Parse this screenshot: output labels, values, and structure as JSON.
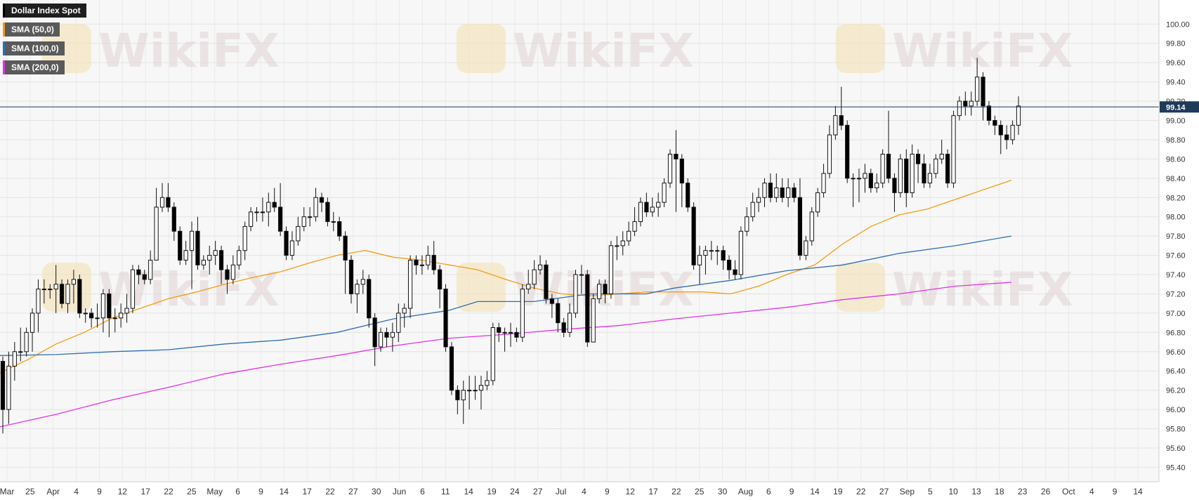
{
  "legend": [
    {
      "label": "Dollar Index Spot",
      "color": "#000000",
      "bg": "#1e1e1e"
    },
    {
      "label": "SMA (50,0)",
      "color": "#f39c12",
      "bg": "#5a5a5a"
    },
    {
      "label": "SMA (100,0)",
      "color": "#2f6db5",
      "bg": "#5a5a5a"
    },
    {
      "label": "SMA (200,0)",
      "color": "#e231e8",
      "bg": "#5a5a5a"
    }
  ],
  "price_label": "99.14",
  "watermark": "WikiFX",
  "chart_data": {
    "type": "candlestick",
    "title": "Dollar Index Spot",
    "ylim": [
      95.25,
      100.25
    ],
    "y_ticks": [
      "100.00",
      "99.80",
      "99.60",
      "99.40",
      "99.20",
      "99.00",
      "98.80",
      "98.60",
      "98.40",
      "98.20",
      "98.00",
      "97.80",
      "97.60",
      "97.40",
      "97.20",
      "97.00",
      "96.80",
      "96.60",
      "96.40",
      "96.20",
      "96.00",
      "95.80",
      "95.60",
      "95.40"
    ],
    "x_labels": [
      "Mar",
      "25",
      "Apr",
      "4",
      "9",
      "12",
      "17",
      "22",
      "25",
      "May",
      "6",
      "9",
      "14",
      "17",
      "22",
      "27",
      "30",
      "Jun",
      "6",
      "11",
      "14",
      "19",
      "24",
      "27",
      "Jul",
      "4",
      "9",
      "12",
      "17",
      "22",
      "25",
      "30",
      "Aug",
      "6",
      "9",
      "14",
      "19",
      "22",
      "27",
      "Sep",
      "5",
      "10",
      "13",
      "18",
      "23",
      "26",
      "Oct",
      "4",
      "9",
      "14"
    ],
    "last_price": 99.14,
    "candles": [
      [
        96.5,
        96.0,
        96.55,
        95.75
      ],
      [
        96.0,
        96.45,
        96.6,
        95.85
      ],
      [
        96.45,
        96.6,
        96.7,
        96.3
      ],
      [
        96.6,
        96.6,
        96.85,
        96.5
      ],
      [
        96.6,
        96.8,
        96.85,
        96.55
      ],
      [
        96.8,
        97.0,
        97.05,
        96.6
      ],
      [
        97.0,
        97.25,
        97.35,
        96.8
      ],
      [
        97.25,
        97.25,
        97.35,
        97.1
      ],
      [
        97.25,
        97.25,
        97.3,
        97.15
      ],
      [
        97.25,
        97.3,
        97.5,
        97.0
      ],
      [
        97.3,
        97.1,
        97.35,
        97.05
      ],
      [
        97.1,
        97.3,
        97.35,
        97.0
      ],
      [
        97.3,
        97.35,
        97.45,
        97.1
      ],
      [
        97.35,
        97.0,
        97.4,
        96.95
      ],
      [
        97.0,
        97.0,
        97.05,
        96.9
      ],
      [
        97.0,
        96.95,
        97.05,
        96.85
      ],
      [
        96.95,
        96.95,
        97.1,
        96.85
      ],
      [
        96.95,
        97.2,
        97.25,
        96.8
      ],
      [
        97.2,
        96.95,
        97.25,
        96.75
      ],
      [
        96.95,
        96.95,
        97.05,
        96.8
      ],
      [
        96.95,
        97.0,
        97.1,
        96.85
      ],
      [
        97.0,
        97.05,
        97.2,
        96.9
      ],
      [
        97.05,
        97.45,
        97.5,
        97.0
      ],
      [
        97.45,
        97.4,
        97.5,
        97.3
      ],
      [
        97.4,
        97.35,
        97.45,
        97.3
      ],
      [
        97.35,
        97.55,
        97.65,
        97.3
      ],
      [
        97.55,
        98.1,
        98.3,
        97.55
      ],
      [
        98.1,
        98.2,
        98.35,
        98.05
      ],
      [
        98.2,
        98.1,
        98.35,
        98.05
      ],
      [
        98.1,
        97.85,
        98.15,
        97.75
      ],
      [
        97.85,
        97.55,
        97.9,
        97.5
      ],
      [
        97.55,
        97.65,
        97.75,
        97.5
      ],
      [
        97.65,
        97.85,
        97.95,
        97.25
      ],
      [
        97.85,
        97.5,
        98.0,
        97.45
      ],
      [
        97.5,
        97.55,
        97.6,
        97.45
      ],
      [
        97.55,
        97.6,
        97.7,
        97.4
      ],
      [
        97.6,
        97.65,
        97.75,
        97.5
      ],
      [
        97.65,
        97.45,
        97.7,
        97.3
      ],
      [
        97.45,
        97.35,
        97.5,
        97.2
      ],
      [
        97.35,
        97.5,
        97.6,
        97.3
      ],
      [
        97.5,
        97.65,
        97.7,
        97.45
      ],
      [
        97.65,
        97.9,
        97.95,
        97.55
      ],
      [
        97.9,
        98.05,
        98.1,
        97.85
      ],
      [
        98.05,
        98.05,
        98.1,
        97.95
      ],
      [
        98.05,
        98.05,
        98.2,
        97.95
      ],
      [
        98.05,
        98.15,
        98.25,
        97.9
      ],
      [
        98.15,
        98.1,
        98.3,
        98.05
      ],
      [
        98.1,
        97.85,
        98.35,
        97.8
      ],
      [
        97.85,
        97.6,
        97.9,
        97.55
      ],
      [
        97.6,
        97.75,
        97.85,
        97.55
      ],
      [
        97.75,
        97.9,
        98.0,
        97.7
      ],
      [
        97.9,
        98.0,
        98.1,
        97.85
      ],
      [
        98.0,
        98.0,
        98.1,
        97.9
      ],
      [
        98.0,
        98.2,
        98.3,
        97.95
      ],
      [
        98.2,
        98.15,
        98.25,
        98.05
      ],
      [
        98.15,
        97.95,
        98.2,
        97.9
      ],
      [
        97.95,
        97.95,
        98.05,
        97.85
      ],
      [
        97.95,
        97.8,
        98.0,
        97.75
      ],
      [
        97.8,
        97.55,
        97.85,
        97.2
      ],
      [
        97.55,
        97.2,
        97.6,
        97.1
      ],
      [
        97.2,
        97.3,
        97.35,
        97.0
      ],
      [
        97.3,
        97.35,
        97.45,
        97.2
      ],
      [
        97.35,
        96.95,
        97.4,
        96.85
      ],
      [
        96.95,
        96.65,
        97.0,
        96.45
      ],
      [
        96.65,
        96.8,
        96.85,
        96.6
      ],
      [
        96.8,
        96.75,
        96.85,
        96.65
      ],
      [
        96.75,
        96.8,
        96.9,
        96.6
      ],
      [
        96.8,
        97.0,
        97.1,
        96.7
      ],
      [
        97.0,
        97.05,
        97.1,
        96.85
      ],
      [
        97.05,
        97.55,
        97.6,
        96.95
      ],
      [
        97.55,
        97.5,
        97.6,
        97.4
      ],
      [
        97.5,
        97.5,
        97.6,
        97.4
      ],
      [
        97.5,
        97.6,
        97.7,
        97.45
      ],
      [
        97.6,
        97.45,
        97.75,
        97.4
      ],
      [
        97.45,
        97.25,
        97.5,
        97.05
      ],
      [
        97.25,
        96.65,
        97.3,
        96.6
      ],
      [
        96.65,
        96.2,
        96.7,
        96.15
      ],
      [
        96.2,
        96.1,
        96.25,
        95.95
      ],
      [
        96.1,
        96.2,
        96.3,
        95.85
      ],
      [
        96.2,
        96.2,
        96.35,
        96.0
      ],
      [
        96.2,
        96.2,
        96.35,
        96.1
      ],
      [
        96.2,
        96.25,
        96.35,
        96.0
      ],
      [
        96.25,
        96.3,
        96.4,
        96.2
      ],
      [
        96.3,
        96.85,
        96.9,
        96.25
      ],
      [
        96.85,
        96.8,
        96.9,
        96.7
      ],
      [
        96.8,
        96.8,
        96.85,
        96.6
      ],
      [
        96.8,
        96.8,
        96.9,
        96.65
      ],
      [
        96.8,
        96.75,
        96.85,
        96.7
      ],
      [
        96.75,
        97.25,
        97.3,
        96.7
      ],
      [
        97.25,
        97.3,
        97.45,
        97.2
      ],
      [
        97.3,
        97.45,
        97.55,
        97.25
      ],
      [
        97.45,
        97.5,
        97.6,
        97.4
      ],
      [
        97.5,
        97.15,
        97.55,
        97.1
      ],
      [
        97.15,
        97.1,
        97.2,
        96.95
      ],
      [
        97.1,
        96.9,
        97.15,
        96.8
      ],
      [
        96.9,
        96.8,
        96.95,
        96.75
      ],
      [
        96.8,
        97.0,
        97.1,
        96.75
      ],
      [
        97.0,
        97.4,
        97.45,
        96.95
      ],
      [
        97.4,
        97.4,
        97.5,
        97.2
      ],
      [
        97.4,
        96.7,
        97.45,
        96.65
      ],
      [
        96.7,
        97.15,
        97.2,
        96.7
      ],
      [
        97.15,
        97.3,
        97.35,
        97.1
      ],
      [
        97.3,
        97.2,
        97.35,
        97.1
      ],
      [
        97.2,
        97.7,
        97.75,
        97.15
      ],
      [
        97.7,
        97.7,
        97.8,
        97.55
      ],
      [
        97.7,
        97.75,
        97.85,
        97.6
      ],
      [
        97.75,
        97.85,
        97.95,
        97.7
      ],
      [
        97.85,
        97.95,
        98.1,
        97.8
      ],
      [
        97.95,
        98.15,
        98.2,
        97.9
      ],
      [
        98.15,
        98.05,
        98.25,
        98.0
      ],
      [
        98.05,
        98.1,
        98.2,
        98.0
      ],
      [
        98.1,
        98.15,
        98.25,
        98.0
      ],
      [
        98.15,
        98.35,
        98.4,
        98.1
      ],
      [
        98.35,
        98.65,
        98.7,
        98.3
      ],
      [
        98.65,
        98.6,
        98.9,
        98.05
      ],
      [
        98.6,
        98.35,
        98.65,
        98.1
      ],
      [
        98.35,
        98.1,
        98.4,
        98.05
      ],
      [
        98.1,
        97.5,
        98.15,
        97.45
      ],
      [
        97.5,
        97.6,
        97.7,
        97.3
      ],
      [
        97.6,
        97.65,
        97.7,
        97.4
      ],
      [
        97.65,
        97.65,
        97.75,
        97.55
      ],
      [
        97.65,
        97.65,
        97.7,
        97.5
      ],
      [
        97.65,
        97.55,
        97.7,
        97.45
      ],
      [
        97.55,
        97.45,
        97.6,
        97.35
      ],
      [
        97.45,
        97.4,
        97.55,
        97.35
      ],
      [
        97.4,
        97.85,
        97.9,
        97.35
      ],
      [
        97.85,
        98.0,
        98.1,
        97.8
      ],
      [
        98.0,
        98.15,
        98.25,
        97.95
      ],
      [
        98.15,
        98.2,
        98.3,
        98.05
      ],
      [
        98.2,
        98.35,
        98.4,
        98.1
      ],
      [
        98.35,
        98.2,
        98.45,
        98.15
      ],
      [
        98.2,
        98.3,
        98.45,
        98.15
      ],
      [
        98.3,
        98.2,
        98.4,
        98.15
      ],
      [
        98.2,
        98.3,
        98.4,
        98.1
      ],
      [
        98.3,
        98.2,
        98.35,
        98.15
      ],
      [
        98.2,
        97.6,
        98.4,
        97.55
      ],
      [
        97.6,
        97.75,
        97.8,
        97.55
      ],
      [
        97.75,
        98.05,
        98.1,
        97.7
      ],
      [
        98.05,
        98.25,
        98.3,
        98.0
      ],
      [
        98.25,
        98.45,
        98.55,
        98.2
      ],
      [
        98.45,
        98.85,
        98.95,
        98.4
      ],
      [
        98.85,
        99.05,
        99.15,
        98.8
      ],
      [
        99.05,
        98.95,
        99.35,
        98.9
      ],
      [
        98.95,
        98.4,
        99.0,
        98.35
      ],
      [
        98.4,
        98.4,
        98.45,
        98.1
      ],
      [
        98.4,
        98.4,
        98.5,
        98.15
      ],
      [
        98.4,
        98.45,
        98.55,
        98.25
      ],
      [
        98.45,
        98.3,
        98.5,
        98.25
      ],
      [
        98.3,
        98.35,
        98.45,
        98.25
      ],
      [
        98.35,
        98.65,
        98.7,
        98.3
      ],
      [
        98.65,
        98.4,
        99.1,
        98.35
      ],
      [
        98.4,
        98.25,
        98.45,
        98.05
      ],
      [
        98.25,
        98.6,
        98.65,
        98.2
      ],
      [
        98.6,
        98.25,
        98.7,
        98.1
      ],
      [
        98.25,
        98.65,
        98.75,
        98.2
      ],
      [
        98.65,
        98.55,
        98.7,
        98.35
      ],
      [
        98.55,
        98.35,
        98.65,
        98.3
      ],
      [
        98.35,
        98.45,
        98.55,
        98.3
      ],
      [
        98.45,
        98.6,
        98.65,
        98.4
      ],
      [
        98.6,
        98.65,
        98.8,
        98.55
      ],
      [
        98.65,
        98.35,
        98.7,
        98.3
      ],
      [
        98.35,
        99.05,
        99.1,
        98.3
      ],
      [
        99.05,
        99.2,
        99.25,
        99.0
      ],
      [
        99.2,
        99.15,
        99.3,
        99.05
      ],
      [
        99.15,
        99.2,
        99.3,
        99.05
      ],
      [
        99.2,
        99.45,
        99.65,
        99.15
      ],
      [
        99.45,
        99.15,
        99.5,
        99.0
      ],
      [
        99.15,
        99.0,
        99.2,
        98.95
      ],
      [
        99.0,
        98.95,
        99.05,
        98.85
      ],
      [
        98.95,
        98.85,
        99.0,
        98.65
      ],
      [
        98.85,
        98.8,
        98.95,
        98.7
      ],
      [
        98.8,
        98.95,
        99.0,
        98.75
      ],
      [
        98.95,
        99.15,
        99.25,
        98.85
      ]
    ],
    "sma50": [
      [
        0,
        96.38
      ],
      [
        40,
        96.52
      ],
      [
        80,
        96.68
      ],
      [
        120,
        96.8
      ],
      [
        160,
        96.95
      ],
      [
        200,
        97.05
      ],
      [
        240,
        97.15
      ],
      [
        280,
        97.22
      ],
      [
        320,
        97.3
      ],
      [
        360,
        97.37
      ],
      [
        400,
        97.43
      ],
      [
        440,
        97.52
      ],
      [
        480,
        97.6
      ],
      [
        520,
        97.65
      ],
      [
        560,
        97.58
      ],
      [
        600,
        97.55
      ],
      [
        640,
        97.5
      ],
      [
        680,
        97.45
      ],
      [
        720,
        97.35
      ],
      [
        760,
        97.26
      ],
      [
        800,
        97.2
      ],
      [
        840,
        97.18
      ],
      [
        880,
        97.2
      ],
      [
        920,
        97.22
      ],
      [
        960,
        97.22
      ],
      [
        1000,
        97.22
      ],
      [
        1040,
        97.2
      ],
      [
        1080,
        97.28
      ],
      [
        1120,
        97.4
      ],
      [
        1160,
        97.5
      ],
      [
        1200,
        97.72
      ],
      [
        1240,
        97.9
      ],
      [
        1280,
        98.02
      ],
      [
        1320,
        98.08
      ],
      [
        1360,
        98.18
      ],
      [
        1400,
        98.28
      ],
      [
        1440,
        98.38
      ]
    ],
    "sma100": [
      [
        0,
        96.56
      ],
      [
        80,
        96.57
      ],
      [
        160,
        96.6
      ],
      [
        240,
        96.62
      ],
      [
        320,
        96.68
      ],
      [
        400,
        96.72
      ],
      [
        480,
        96.8
      ],
      [
        560,
        96.94
      ],
      [
        640,
        97.03
      ],
      [
        680,
        97.12
      ],
      [
        720,
        97.12
      ],
      [
        760,
        97.12
      ],
      [
        800,
        97.16
      ],
      [
        840,
        97.2
      ],
      [
        880,
        97.2
      ],
      [
        920,
        97.2
      ],
      [
        960,
        97.26
      ],
      [
        1040,
        97.34
      ],
      [
        1120,
        97.44
      ],
      [
        1200,
        97.5
      ],
      [
        1280,
        97.62
      ],
      [
        1360,
        97.7
      ],
      [
        1440,
        97.8
      ]
    ],
    "sma200": [
      [
        0,
        95.82
      ],
      [
        80,
        95.95
      ],
      [
        160,
        96.1
      ],
      [
        240,
        96.23
      ],
      [
        320,
        96.37
      ],
      [
        400,
        96.47
      ],
      [
        480,
        96.56
      ],
      [
        560,
        96.66
      ],
      [
        640,
        96.74
      ],
      [
        720,
        96.78
      ],
      [
        800,
        96.83
      ],
      [
        880,
        96.87
      ],
      [
        960,
        96.94
      ],
      [
        1040,
        97.0
      ],
      [
        1120,
        97.06
      ],
      [
        1200,
        97.14
      ],
      [
        1280,
        97.2
      ],
      [
        1360,
        97.28
      ],
      [
        1440,
        97.32
      ]
    ]
  }
}
